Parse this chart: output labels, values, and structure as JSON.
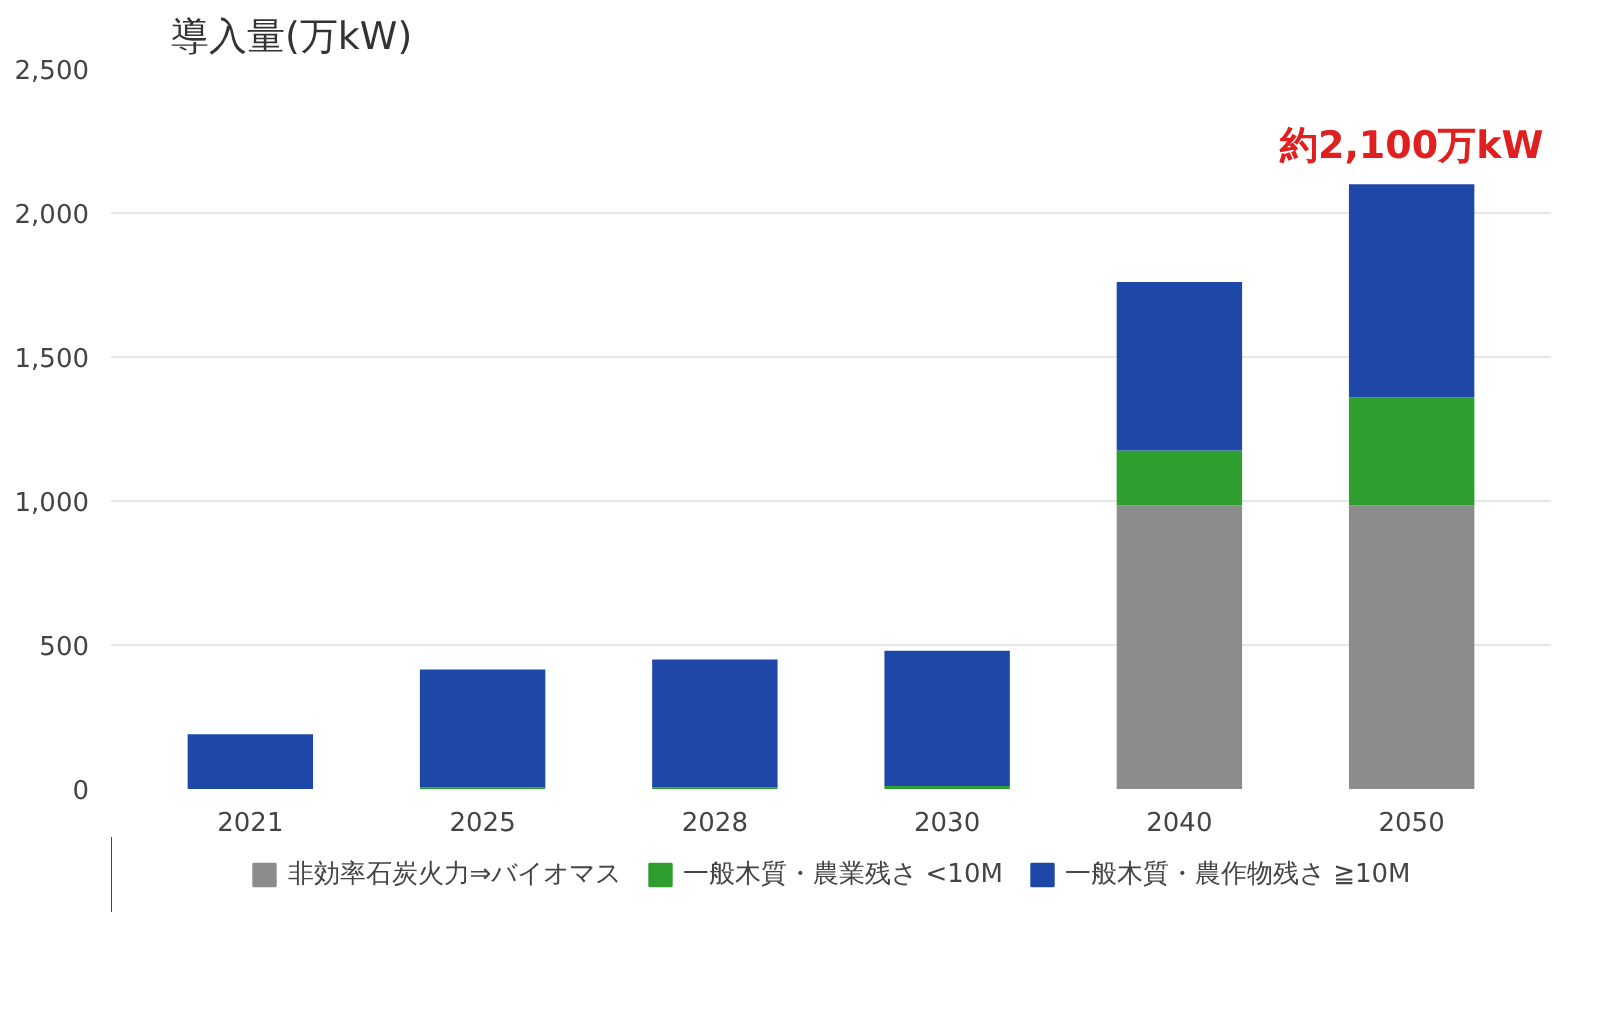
{
  "chart_data": {
    "type": "bar",
    "title": "導入量(万kW)",
    "stacked": true,
    "categories": [
      "2021",
      "2025",
      "2028",
      "2030",
      "2040",
      "2050"
    ],
    "series": [
      {
        "name": "非効率石炭火力⇒バイオマス",
        "color": "#8c8c8c",
        "values": [
          0,
          0,
          0,
          0,
          985,
          985
        ]
      },
      {
        "name": "一般木質・農業残さ <10M",
        "color": "#2e9e2e",
        "values": [
          0,
          5,
          5,
          10,
          190,
          375
        ]
      },
      {
        "name": "一般木質・農作物残さ ≧10M",
        "color": "#1f47a8",
        "values": [
          190,
          410,
          445,
          470,
          585,
          740
        ]
      }
    ],
    "ylim": [
      0,
      2500
    ],
    "yticks": [
      0,
      {
        "value": 500,
        "label": "500"
      },
      {
        "value": 1000,
        "label": "1,000"
      },
      {
        "value": 1500,
        "label": "1,500"
      },
      {
        "value": 2000,
        "label": "2,000"
      },
      {
        "value": 2500,
        "label": "2,500"
      }
    ],
    "grid": "y",
    "legend": "bottom",
    "annotations": [
      {
        "text": "約2,100万kW",
        "x": "2050",
        "y": 2100
      }
    ]
  }
}
